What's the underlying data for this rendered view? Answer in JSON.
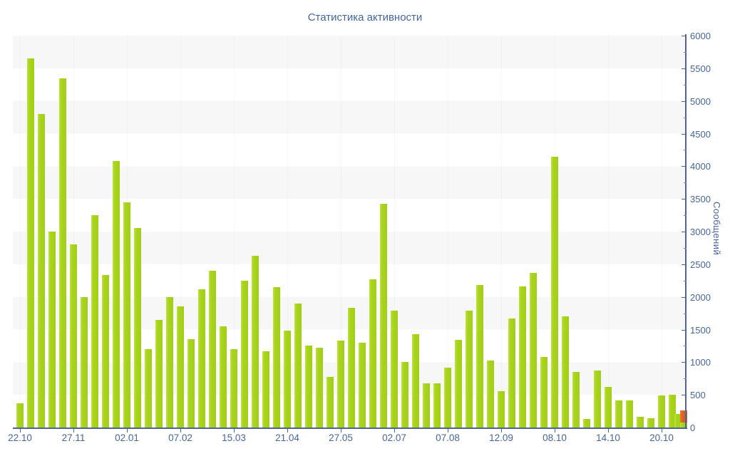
{
  "chart_data": {
    "type": "bar",
    "title": "Статистика активности",
    "xlabel": "",
    "ylabel": "Сообщений",
    "ylim": [
      0,
      6000
    ],
    "y_tick_step": 500,
    "y_minor_tick_step": 250,
    "y_tick_labels": [
      "0",
      "500",
      "1000",
      "1500",
      "2000",
      "2500",
      "3000",
      "3500",
      "4000",
      "4500",
      "5000",
      "5500",
      "6000"
    ],
    "legend": "none",
    "grid": "horizontal-bands",
    "band_color": "#f7f7f7",
    "bar_color": "#a8d41e",
    "current_bar_color": "#dd641e",
    "axis_color": "#4f639b",
    "label_color": "#47659e",
    "series": [
      {
        "name": "Сообщений",
        "values": [
          370,
          5650,
          4800,
          3000,
          5350,
          2800,
          2000,
          3250,
          2330,
          4080,
          3450,
          3050,
          1200,
          1650,
          2000,
          1850,
          1350,
          2120,
          2400,
          1550,
          1200,
          2250,
          2630,
          1170,
          2150,
          1480,
          1900,
          1250,
          1220,
          780,
          1330,
          1830,
          1300,
          2270,
          3430,
          1790,
          1000,
          1430,
          680,
          680,
          920,
          1340,
          1790,
          2180,
          1030,
          560,
          1670,
          2160,
          2370,
          1080,
          4150,
          1700,
          850,
          130,
          870,
          620,
          410,
          420,
          160,
          140,
          490,
          500,
          210
        ]
      }
    ],
    "current_bar": {
      "green": 80,
      "orange": 185,
      "total": 265
    },
    "x_tick_labels": [
      {
        "label": "22.10",
        "bar": 1
      },
      {
        "label": "27.11",
        "bar": 6
      },
      {
        "label": "02.01",
        "bar": 11
      },
      {
        "label": "07.02",
        "bar": 16
      },
      {
        "label": "15.03",
        "bar": 21
      },
      {
        "label": "21.04",
        "bar": 26
      },
      {
        "label": "27.05",
        "bar": 31
      },
      {
        "label": "02.07",
        "bar": 36
      },
      {
        "label": "07.08",
        "bar": 41
      },
      {
        "label": "12.09",
        "bar": 46
      },
      {
        "label": "08.10",
        "bar": 51
      },
      {
        "label": "14.10",
        "bar": 56
      },
      {
        "label": "20.10",
        "bar": 61
      }
    ]
  }
}
